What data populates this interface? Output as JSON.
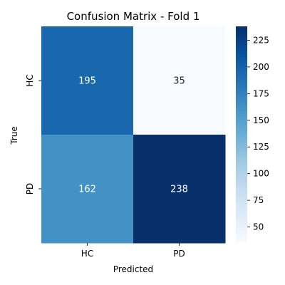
{
  "chart_data": {
    "type": "heatmap",
    "title": "Confusion Matrix - Fold 1",
    "xlabel": "Predicted",
    "ylabel": "True",
    "x_categories": [
      "HC",
      "PD"
    ],
    "y_categories": [
      "HC",
      "PD"
    ],
    "values": [
      [
        195,
        35
      ],
      [
        162,
        238
      ]
    ],
    "colormap": "Blues",
    "colorbar": {
      "range": [
        35,
        238
      ],
      "ticks": [
        50,
        75,
        100,
        125,
        150,
        175,
        200,
        225
      ]
    },
    "grid": false,
    "colors": {
      "low": "#f7fbff",
      "high": "#08306b",
      "text_dark_cell": "#ffffff",
      "text_light_cell": "#262626"
    }
  }
}
